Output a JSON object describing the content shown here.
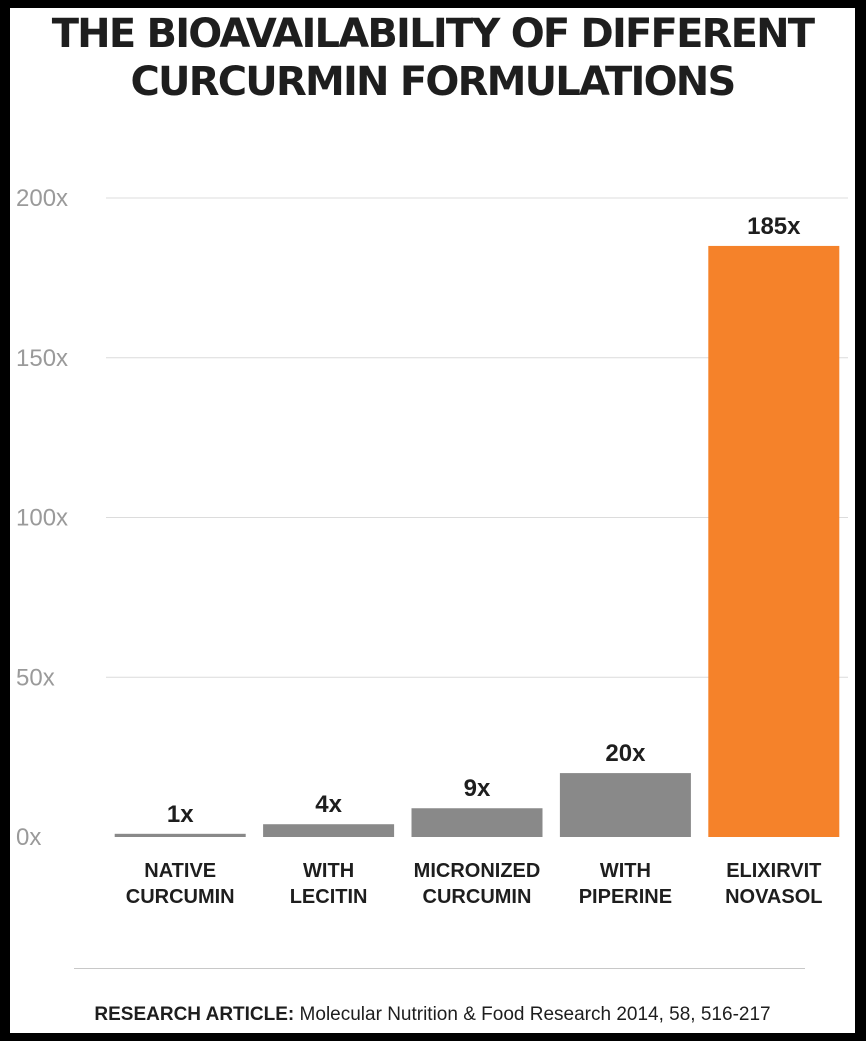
{
  "chart_data": {
    "type": "bar",
    "title_lines": [
      "THE BIOAVAILABILITY OF DIFFERENT",
      "CURCURMIN FORMULATIONS"
    ],
    "categories": [
      [
        "NATIVE",
        "CURCUMIN"
      ],
      [
        "WITH",
        "LECITIN"
      ],
      [
        "MICRONIZED",
        "CURCUMIN"
      ],
      [
        "WITH",
        "PIPERINE"
      ],
      [
        "ELIXIRVIT",
        "NOVASOL"
      ]
    ],
    "values": [
      1,
      4,
      9,
      20,
      185
    ],
    "data_labels": [
      "1x",
      "4x",
      "9x",
      "20x",
      "185x"
    ],
    "ylim": [
      0,
      200
    ],
    "yticks": [
      0,
      50,
      100,
      150,
      200
    ],
    "ytick_labels": [
      "0x",
      "50x",
      "100x",
      "150x",
      "200x"
    ],
    "grid": true,
    "colors": {
      "default_bar": "#898989",
      "highlight_bar": "#f5822a",
      "grid": "#dcdcdc",
      "tick_text": "#9a9a9a",
      "text": "#1e1e1e"
    },
    "highlight_index": 4
  },
  "footer": {
    "label": "RESEARCH ARTICLE:",
    "text": " Molecular Nutrition & Food Research 2014, 58, 516-217"
  }
}
